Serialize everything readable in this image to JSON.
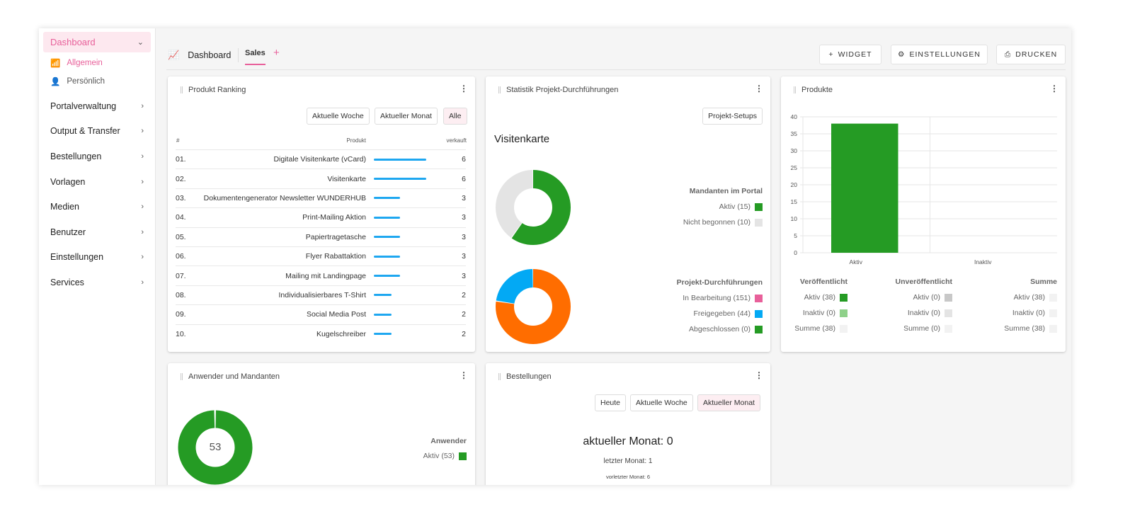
{
  "sidebar": {
    "active": "Dashboard",
    "sub": [
      "Allgemein",
      "Persönlich"
    ],
    "items": [
      "Portalverwaltung",
      "Output & Transfer",
      "Bestellungen",
      "Vorlagen",
      "Medien",
      "Benutzer",
      "Einstellungen",
      "Services"
    ]
  },
  "header": {
    "title": "Dashboard",
    "tab": "Sales",
    "widget": "WIDGET",
    "settings": "EINSTELLUNGEN",
    "print": "DRUCKEN"
  },
  "ranking": {
    "title": "Produkt Ranking",
    "filters": [
      "Aktuelle Woche",
      "Aktueller Monat",
      "Alle"
    ],
    "active_filter": "Alle",
    "cols": [
      "#",
      "Produkt",
      "verkauft"
    ],
    "rows": [
      [
        "01.",
        "Digitale Visitenkarte (vCard)",
        6
      ],
      [
        "02.",
        "Visitenkarte",
        6
      ],
      [
        "03.",
        "Dokumentengenerator Newsletter WUNDERHUB",
        3
      ],
      [
        "04.",
        "Print-Mailing Aktion",
        3
      ],
      [
        "05.",
        "Papiertragetasche",
        3
      ],
      [
        "06.",
        "Flyer Rabattaktion",
        3
      ],
      [
        "07.",
        "Mailing mit Landingpage",
        3
      ],
      [
        "08.",
        "Individualisierbares T-Shirt",
        2
      ],
      [
        "09.",
        "Social Media Post",
        2
      ],
      [
        "10.",
        "Kugelschreiber",
        2
      ]
    ],
    "bar_color": "#1ea7f0"
  },
  "stat": {
    "title": "Statistik Projekt-Durchführungen",
    "button": "Projekt-Setups",
    "subtitle": "Visitenkarte",
    "mandanten": {
      "heading": "Mandanten im Portal",
      "items": [
        {
          "label": "Aktiv (15)",
          "value": 15,
          "color": "#259b24"
        },
        {
          "label": "Nicht begonnen (10)",
          "value": 10,
          "color": "#e4e4e4"
        }
      ]
    },
    "projekte": {
      "heading": "Projekt-Durchführungen",
      "items": [
        {
          "label": "In Bearbeitung (151)",
          "value": 151,
          "color": "#e8609a",
          "ring_color": "#ff6d00"
        },
        {
          "label": "Freigegeben (44)",
          "value": 44,
          "color": "#03a9f4"
        },
        {
          "label": "Abgeschlossen (0)",
          "value": 0,
          "color": "#259b24"
        }
      ]
    }
  },
  "produkte": {
    "title": "Produkte",
    "chart_data": {
      "type": "bar",
      "categories": [
        "Aktiv",
        "Inaktiv"
      ],
      "values": [
        38,
        0
      ],
      "ylim": [
        0,
        40
      ],
      "yticks": [
        0,
        5,
        10,
        15,
        20,
        25,
        30,
        35,
        40
      ],
      "grid": true,
      "color": "#259b24"
    },
    "groups": [
      {
        "heading": "Veröffentlicht",
        "items": [
          [
            "Aktiv (38)",
            "#259b24"
          ],
          [
            "Inaktiv (0)",
            "#8fd18a"
          ],
          [
            "Summe (38)",
            "#f2f2f2"
          ]
        ]
      },
      {
        "heading": "Unveröffentlicht",
        "items": [
          [
            "Aktiv (0)",
            "#c8c8c8"
          ],
          [
            "Inaktiv (0)",
            "#e4e4e4"
          ],
          [
            "Summe (0)",
            "#f2f2f2"
          ]
        ]
      },
      {
        "heading": "Summe",
        "items": [
          [
            "Aktiv (38)",
            "#f2f2f2"
          ],
          [
            "Inaktiv (0)",
            "#f2f2f2"
          ],
          [
            "Summe (38)",
            "#f2f2f2"
          ]
        ]
      }
    ]
  },
  "anwender": {
    "title": "Anwender und Mandanten",
    "center": "53",
    "heading": "Anwender",
    "item": "Aktiv (53)",
    "color": "#259b24"
  },
  "bestellungen": {
    "title": "Bestellungen",
    "filters": [
      "Heute",
      "Aktuelle Woche",
      "Aktueller Monat"
    ],
    "active_filter": "Aktueller Monat",
    "current": "aktueller Monat: 0",
    "last": "letzter Monat: 1",
    "prev": "vorletzter Monat: 6"
  }
}
